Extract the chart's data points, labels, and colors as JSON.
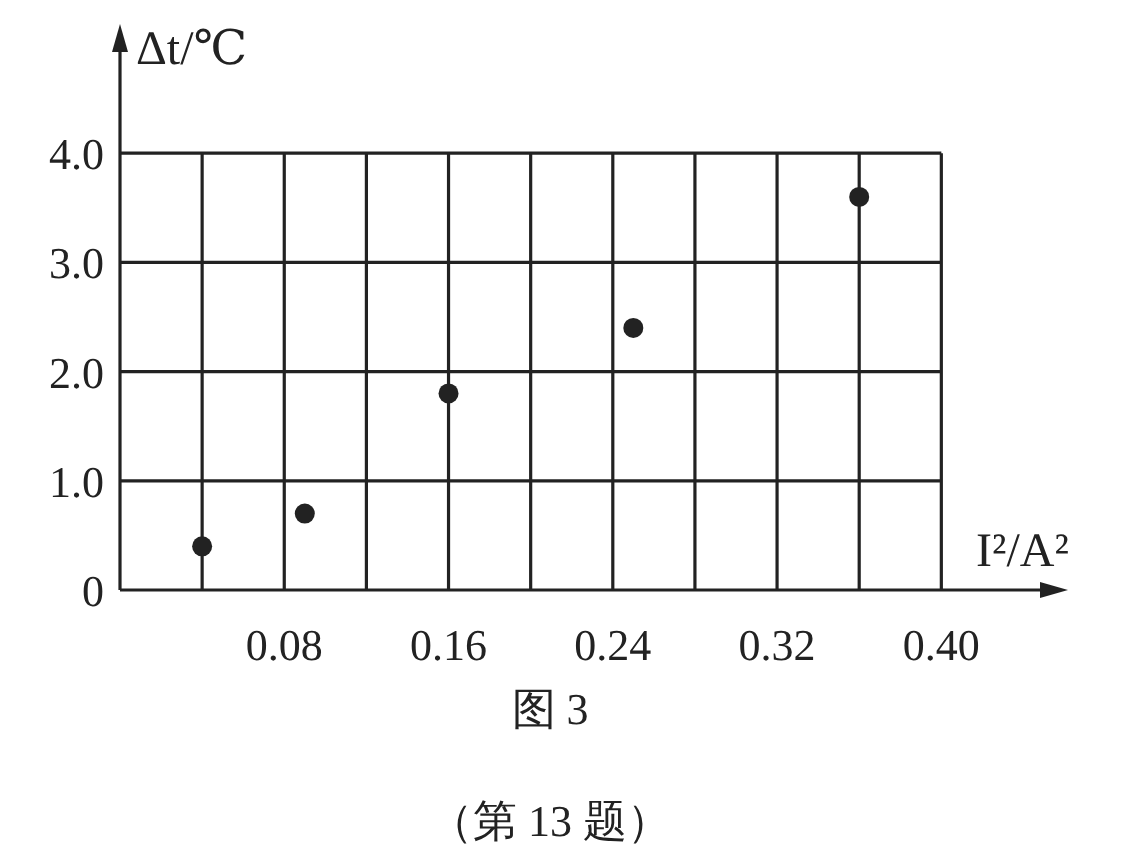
{
  "chart_data": {
    "type": "scatter",
    "xlabel": "I²/A²",
    "ylabel": "Δt/℃",
    "x": [
      0.04,
      0.09,
      0.16,
      0.25,
      0.36
    ],
    "values": [
      0.4,
      0.7,
      1.8,
      2.4,
      3.6
    ],
    "color": "#222222",
    "marker": "circle",
    "grid": true,
    "xlim": [
      0,
      0.45
    ],
    "ylim": [
      0,
      5.0
    ],
    "xticks": [
      {
        "value": 0.04,
        "label": null
      },
      {
        "value": 0.08,
        "label": "0.08"
      },
      {
        "value": 0.12,
        "label": null
      },
      {
        "value": 0.16,
        "label": "0.16"
      },
      {
        "value": 0.2,
        "label": null
      },
      {
        "value": 0.24,
        "label": "0.24"
      },
      {
        "value": 0.28,
        "label": null
      },
      {
        "value": 0.32,
        "label": "0.32"
      },
      {
        "value": 0.36,
        "label": null
      },
      {
        "value": 0.4,
        "label": "0.40"
      }
    ],
    "yticks": [
      0,
      {
        "value": 1,
        "label": "1.0"
      },
      {
        "value": 2,
        "label": "2.0"
      },
      {
        "value": 3,
        "label": "3.0"
      },
      {
        "value": 4,
        "label": "4.0"
      }
    ],
    "annotations": [
      "图 3",
      "（第 13 题）"
    ]
  }
}
